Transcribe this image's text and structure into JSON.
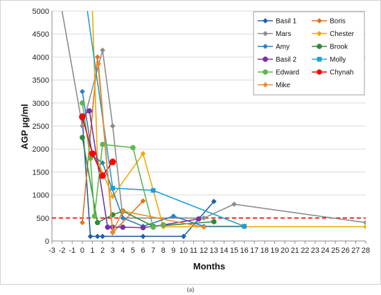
{
  "caption": "(a)",
  "chart_data": {
    "type": "line",
    "title": "",
    "xlabel": "Months",
    "ylabel": "AGP µg/ml",
    "xlim": [
      -3,
      28
    ],
    "ylim": [
      0,
      5000
    ],
    "xticks": [
      -3,
      -2,
      -1,
      0,
      1,
      2,
      3,
      4,
      5,
      6,
      7,
      8,
      9,
      10,
      11,
      12,
      13,
      14,
      15,
      16,
      17,
      18,
      19,
      20,
      21,
      22,
      23,
      24,
      25,
      26,
      27,
      28
    ],
    "yticks": [
      0,
      500,
      1000,
      1500,
      2000,
      2500,
      3000,
      3500,
      4000,
      4500,
      5000
    ],
    "grid": "horizontal",
    "legend_position": "top-right",
    "reference_line": {
      "y": 500,
      "color": "#ff0000",
      "style": "dashed"
    },
    "series": [
      {
        "name": "Basil 1",
        "color": "#1f5fa8",
        "marker": "diamond",
        "points": [
          [
            0,
            2650
          ],
          [
            0.8,
            100
          ],
          [
            1.5,
            100
          ],
          [
            2,
            100
          ],
          [
            6,
            100
          ],
          [
            10,
            100
          ],
          [
            13,
            860
          ]
        ]
      },
      {
        "name": "Boris",
        "color": "#e07020",
        "marker": "diamond",
        "points": [
          [
            0,
            400
          ],
          [
            1.5,
            4000
          ],
          [
            3,
            180
          ],
          [
            6,
            870
          ]
        ]
      },
      {
        "name": "Mars",
        "color": "#8c8c8c",
        "marker": "diamond",
        "points": [
          [
            -2,
            5000
          ],
          [
            0,
            2500
          ],
          [
            2,
            4150
          ],
          [
            3,
            2500
          ],
          [
            4,
            500
          ],
          [
            12,
            500
          ],
          [
            15,
            800
          ],
          [
            28,
            400
          ]
        ]
      },
      {
        "name": "Chester",
        "color": "#f0a800",
        "marker": "diamond",
        "points": [
          [
            1,
            5000
          ],
          [
            1.5,
            1750
          ],
          [
            3,
            970
          ],
          [
            6,
            1900
          ],
          [
            8,
            310
          ],
          [
            16,
            310
          ],
          [
            28,
            310
          ]
        ]
      },
      {
        "name": "Amy",
        "color": "#2a80c4",
        "marker": "diamond",
        "points": [
          [
            0,
            3250
          ],
          [
            1,
            1850
          ],
          [
            2,
            1700
          ],
          [
            4,
            500
          ],
          [
            6,
            320
          ],
          [
            9,
            540
          ],
          [
            12,
            320
          ],
          [
            16,
            320
          ]
        ]
      },
      {
        "name": "Brook",
        "color": "#2e8b3a",
        "marker": "circle",
        "points": [
          [
            0,
            2250
          ],
          [
            1.5,
            400
          ],
          [
            3,
            570
          ],
          [
            4,
            650
          ],
          [
            7,
            320
          ],
          [
            13,
            420
          ]
        ]
      },
      {
        "name": "Basil 2",
        "color": "#7a2fa8",
        "marker": "circle",
        "points": [
          [
            0,
            2720
          ],
          [
            0.7,
            2830
          ],
          [
            2.5,
            300
          ],
          [
            3,
            300
          ],
          [
            4,
            300
          ],
          [
            6,
            290
          ],
          [
            8,
            350
          ],
          [
            11.5,
            480
          ]
        ]
      },
      {
        "name": "Molly",
        "color": "#18a0d8",
        "marker": "square",
        "points": [
          [
            0.5,
            5000
          ],
          [
            3,
            1150
          ],
          [
            7,
            1100
          ],
          [
            16,
            320
          ]
        ]
      },
      {
        "name": "Edward",
        "color": "#5cb84c",
        "marker": "circle",
        "points": [
          [
            0,
            3000
          ],
          [
            0.8,
            1800
          ],
          [
            1.2,
            540
          ],
          [
            2,
            2100
          ],
          [
            5,
            2030
          ],
          [
            7,
            300
          ],
          [
            8,
            350
          ]
        ]
      },
      {
        "name": "Chynah",
        "color": "#ff0000",
        "marker": "circle",
        "points": [
          [
            0,
            2700
          ],
          [
            1,
            1900
          ],
          [
            2,
            1420
          ],
          [
            3,
            1720
          ]
        ]
      },
      {
        "name": "Mike",
        "color": "#f08a24",
        "marker": "diamond",
        "points": [
          [
            1.6,
            3850
          ],
          [
            3,
            200
          ],
          [
            4,
            650
          ],
          [
            12,
            300
          ]
        ]
      }
    ]
  }
}
